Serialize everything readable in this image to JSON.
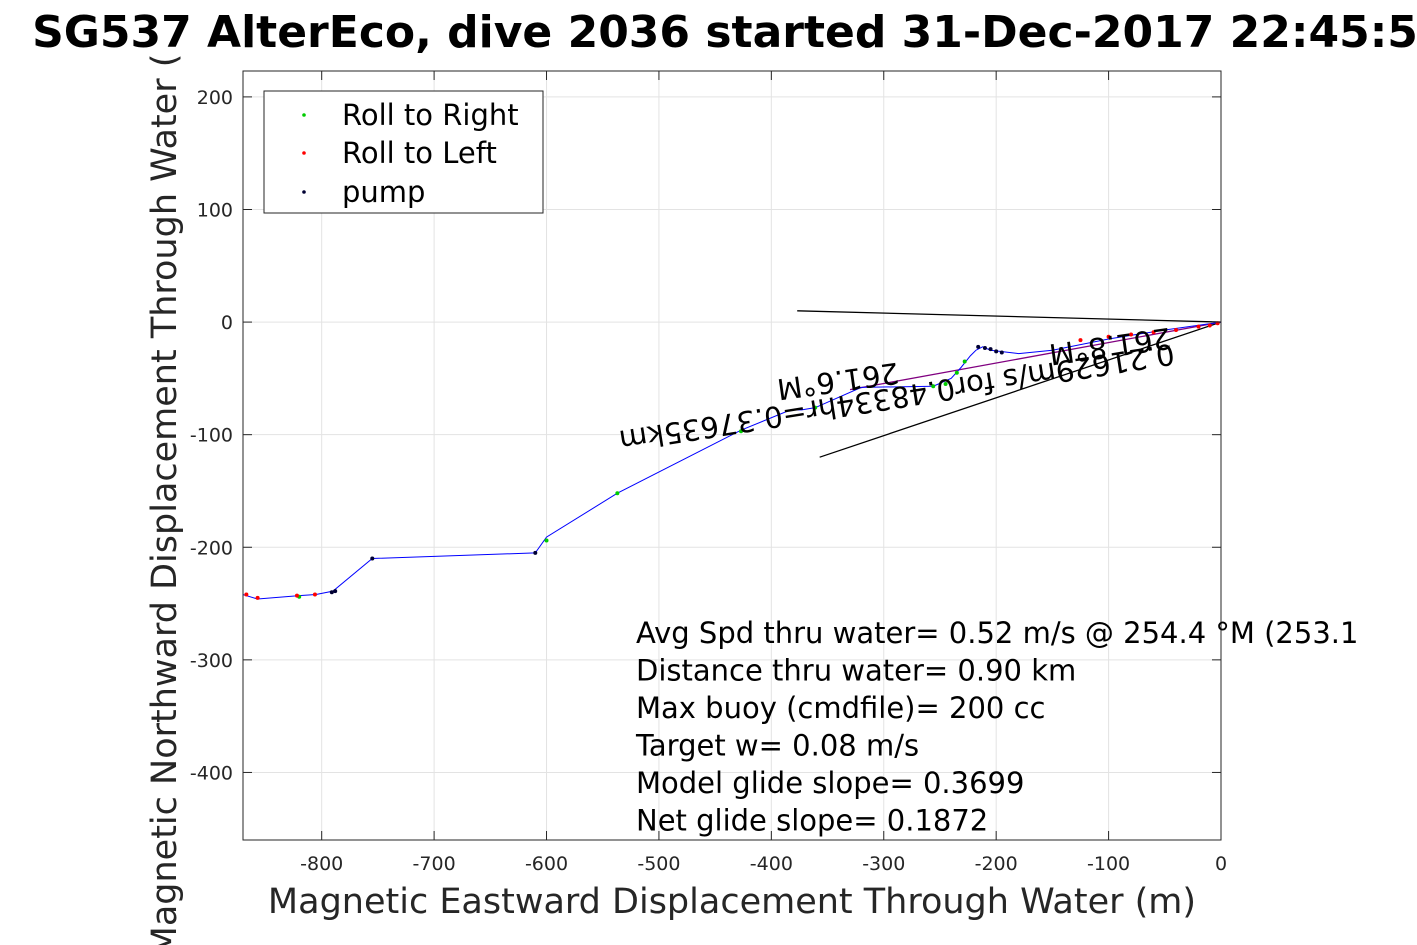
{
  "chart_data": {
    "type": "line",
    "title": "SG537 AlterEco, dive 2036 started 31-Dec-2017 22:45:5",
    "xlabel": "Magnetic Eastward Displacement Through Water (m)",
    "ylabel": "Magnetic Northward Displacement Through Water (",
    "xlim": [
      -870,
      0
    ],
    "ylim": [
      -460,
      223
    ],
    "xticks": [
      -800,
      -700,
      -600,
      -500,
      -400,
      -300,
      -200,
      -100,
      0
    ],
    "yticks": [
      200,
      100,
      0,
      -100,
      -200,
      -300,
      -400
    ],
    "grid": true,
    "legend_location": "top-left",
    "legend": [
      {
        "label": "Roll to Right",
        "color": "#00cc00"
      },
      {
        "label": "Roll to Left",
        "color": "#ff0000"
      },
      {
        "label": "pump",
        "color": "#000033"
      }
    ],
    "track": {
      "color": "#0000ff",
      "x": [
        -870,
        -857,
        -820,
        -805,
        -790,
        -755,
        -610,
        -600,
        -537,
        -427,
        -383,
        -373,
        -361,
        -320,
        -256,
        -240,
        -231,
        -223,
        -218,
        -212,
        -205,
        -180,
        -150,
        -100,
        -50,
        0
      ],
      "y": [
        -242,
        -246,
        -243,
        -242,
        -239,
        -210,
        -205,
        -191,
        -152,
        -96,
        -78,
        -78,
        -76,
        -58,
        -57,
        -50,
        -40,
        -30,
        -25,
        -22,
        -25,
        -28,
        -25,
        -15,
        -7,
        0
      ]
    },
    "roll_right_points": {
      "x": [
        -820,
        -600,
        -537,
        -427,
        -361,
        -256,
        -245,
        -235,
        -228
      ],
      "y": [
        -244,
        -194,
        -152,
        -97,
        -76,
        -57,
        -55,
        -45,
        -35
      ]
    },
    "roll_left_points": {
      "x": [
        -867,
        -857,
        -822,
        -806,
        -3,
        -10,
        -20,
        -40,
        -60,
        -80,
        -100,
        -125
      ],
      "y": [
        -242,
        -245,
        -243,
        -242,
        -1,
        -3,
        -4,
        -7,
        -9,
        -11,
        -13,
        -16
      ]
    },
    "pump_points": {
      "x": [
        -791,
        -788,
        -755,
        -610,
        -216,
        -210,
        -205,
        -200,
        -195
      ],
      "y": [
        -240,
        -239,
        -210,
        -205,
        -22,
        -23,
        -24,
        -26,
        -27
      ]
    },
    "current_lines": [
      {
        "x": [
          -377,
          0
        ],
        "y": [
          10,
          0
        ],
        "color": "#000000"
      },
      {
        "x": [
          -357,
          0
        ],
        "y": [
          -120,
          0
        ],
        "color": "#000000"
      },
      {
        "x": [
          -330,
          0
        ],
        "y": [
          -60,
          0
        ],
        "color": "#800080"
      }
    ],
    "rotated_annotations": [
      {
        "text": "261.8°M",
        "x": -46,
        "y": -5,
        "angle": 172
      },
      {
        "text": "0.21629m/s for0.48334hr=0.37635km",
        "x": -43,
        "y": -19,
        "angle": 171
      },
      {
        "text": "261.6°M",
        "x": -288,
        "y": -36,
        "angle": 172
      }
    ],
    "stats": [
      "Avg Spd thru water=  0.52 m/s @ 254.4 °M (253.1",
      "Distance thru water=  0.90 km",
      "Max buoy (cmdfile)= 200 cc",
      "Target w= 0.08 m/s",
      "Model glide slope= 0.3699",
      "Net glide slope= 0.1872"
    ]
  }
}
